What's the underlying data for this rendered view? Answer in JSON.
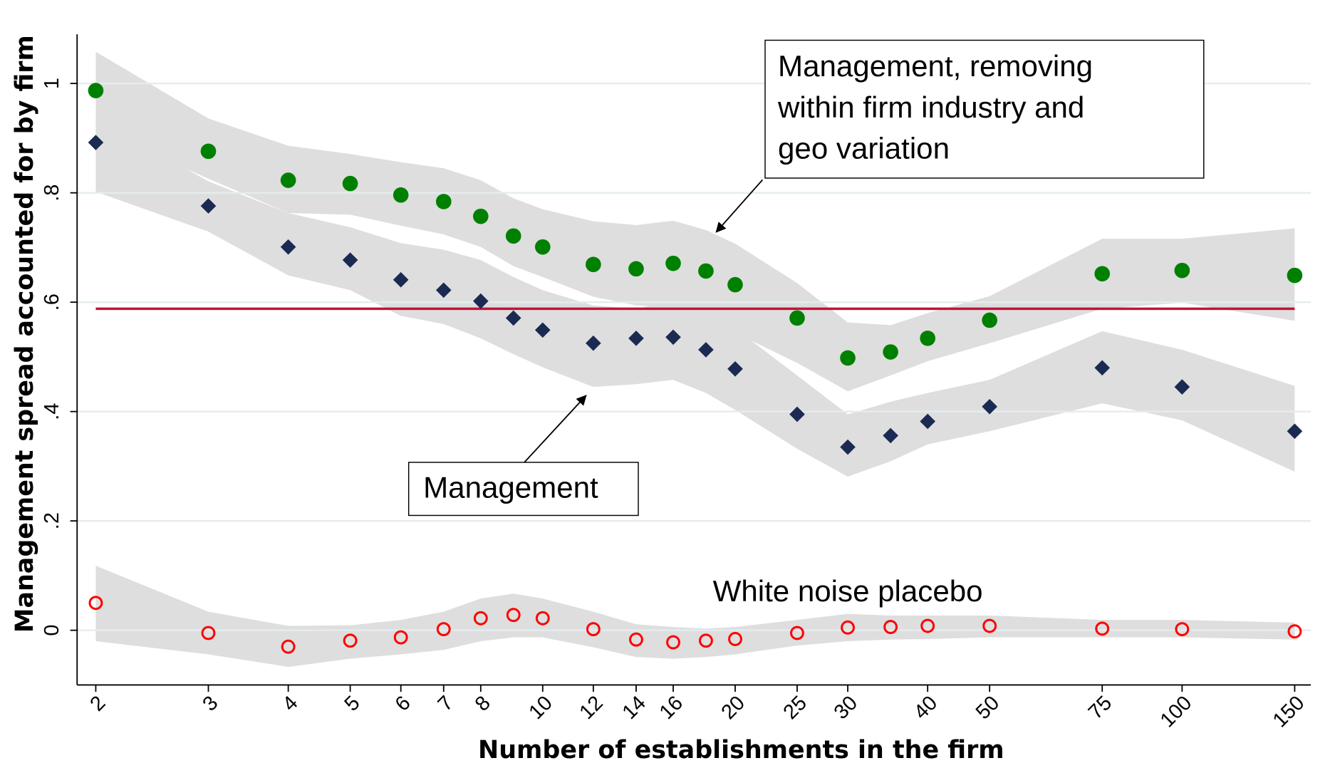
{
  "chart_data": {
    "type": "scatter",
    "x_label": "Number of establishments in the firm",
    "y_label": "Management spread accounted for by firm",
    "log_x": true,
    "grid": true,
    "grid_color": "#e4ecef",
    "band_color": "#dedede",
    "x": [
      2,
      3,
      4,
      5,
      6,
      7,
      8,
      9,
      10,
      12,
      14,
      16,
      18,
      20,
      25,
      30,
      35,
      40,
      50,
      75,
      100,
      150
    ],
    "xlim": [
      1.87,
      159
    ],
    "xticks": [
      2,
      3,
      4,
      5,
      6,
      7,
      8,
      10,
      12,
      14,
      16,
      20,
      25,
      30,
      40,
      50,
      75,
      100,
      150
    ],
    "ylim": [
      -0.1,
      1.09
    ],
    "yticks": [
      0,
      {
        "value": 0.2,
        "label": ".2"
      },
      {
        "value": 0.4,
        "label": ".4"
      },
      {
        "value": 0.6,
        "label": ".6"
      },
      {
        "value": 0.8,
        "label": ".8"
      },
      1
    ],
    "series": [
      {
        "marker": "circle",
        "color": "#008000",
        "values": [
          0.987,
          0.876,
          0.823,
          0.817,
          0.796,
          0.784,
          0.757,
          0.721,
          0.701,
          0.669,
          0.661,
          0.671,
          0.657,
          0.632,
          0.571,
          0.498,
          0.509,
          0.534,
          0.567,
          0.652,
          0.658,
          0.649
        ],
        "upper": [
          1.058,
          0.936,
          0.886,
          0.871,
          0.856,
          0.845,
          0.823,
          0.79,
          0.77,
          0.748,
          0.741,
          0.749,
          0.732,
          0.707,
          0.635,
          0.563,
          0.558,
          0.58,
          0.611,
          0.716,
          0.716,
          0.735
        ],
        "lower": [
          0.916,
          0.826,
          0.763,
          0.76,
          0.74,
          0.724,
          0.701,
          0.666,
          0.646,
          0.61,
          0.594,
          0.591,
          0.575,
          0.544,
          0.489,
          0.437,
          0.466,
          0.492,
          0.525,
          0.588,
          0.599,
          0.566
        ]
      },
      {
        "marker": "diamond",
        "color": "#1b2a52",
        "values": [
          0.892,
          0.776,
          0.701,
          0.677,
          0.641,
          0.622,
          0.602,
          0.571,
          0.549,
          0.525,
          0.534,
          0.536,
          0.513,
          0.478,
          0.395,
          0.335,
          0.356,
          0.382,
          0.409,
          0.48,
          0.445,
          0.364
        ],
        "upper": [
          0.936,
          0.821,
          0.763,
          0.737,
          0.708,
          0.696,
          0.677,
          0.646,
          0.622,
          0.594,
          0.588,
          0.603,
          0.578,
          0.552,
          0.466,
          0.395,
          0.418,
          0.434,
          0.458,
          0.547,
          0.513,
          0.447
        ],
        "lower": [
          0.802,
          0.729,
          0.649,
          0.622,
          0.575,
          0.56,
          0.534,
          0.505,
          0.481,
          0.445,
          0.45,
          0.458,
          0.434,
          0.403,
          0.332,
          0.281,
          0.309,
          0.34,
          0.364,
          0.415,
          0.384,
          0.29
        ]
      },
      {
        "marker": "hollow-circle",
        "color": "#ff0000",
        "values": [
          0.05,
          -0.005,
          -0.03,
          -0.019,
          -0.013,
          0.002,
          0.022,
          0.028,
          0.022,
          0.002,
          -0.017,
          -0.022,
          -0.019,
          -0.016,
          -0.005,
          0.005,
          0.006,
          0.008,
          0.008,
          0.003,
          0.002,
          -0.002
        ],
        "upper": [
          0.118,
          0.034,
          0.008,
          0.009,
          0.019,
          0.034,
          0.058,
          0.067,
          0.058,
          0.034,
          0.011,
          0.006,
          0.003,
          0.006,
          0.019,
          0.03,
          0.027,
          0.027,
          0.027,
          0.019,
          0.019,
          0.014
        ],
        "lower": [
          -0.02,
          -0.044,
          -0.067,
          -0.052,
          -0.044,
          -0.036,
          -0.02,
          -0.013,
          -0.013,
          -0.031,
          -0.049,
          -0.052,
          -0.049,
          -0.044,
          -0.028,
          -0.02,
          -0.017,
          -0.016,
          -0.013,
          -0.013,
          -0.013,
          -0.017
        ]
      }
    ],
    "reference_line": {
      "value": 0.588,
      "color": "#c0143c"
    },
    "annotations": [
      {
        "lines": [
          "Management, removing",
          "within firm industry and",
          "geo variation"
        ]
      },
      {
        "lines": [
          "Management"
        ]
      },
      {
        "lines": [
          "White noise placebo"
        ]
      }
    ]
  }
}
